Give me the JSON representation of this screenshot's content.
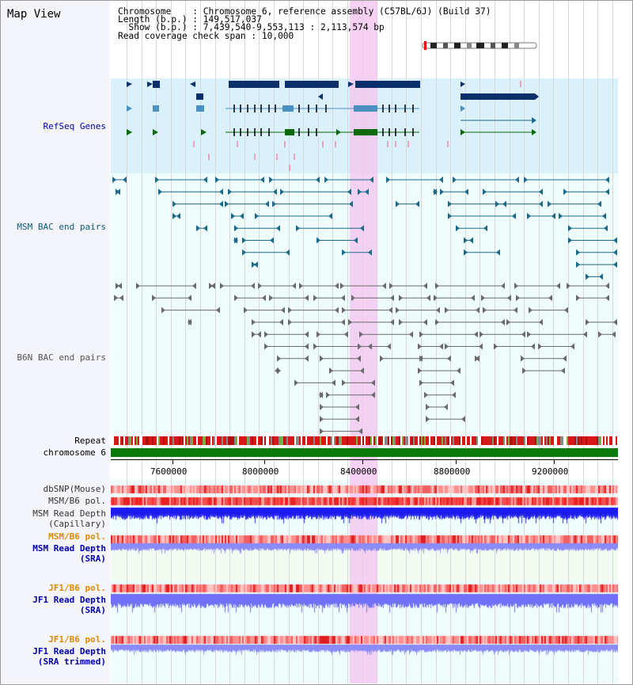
{
  "app": {
    "title": "Map View"
  },
  "info": {
    "line1": "Chromosome    : Chromosome 6, reference assembly (C57BL/6J) (Build 37)",
    "line2": "Length (b.p.) : 149,517,037",
    "line3": "  Show (b.p.) : 7,439,540-9,553,113 : 2,113,574 bp",
    "line4": "Read coverage check span : 10,000"
  },
  "tracks": {
    "refseq": "RefSeq Genes",
    "msm_bac": "MSM BAC end pairs",
    "b6n_bac": "B6N BAC end pairs",
    "repeat": "Repeat",
    "chrom": "chromosome 6",
    "dbsnp": "dbSNP(Mouse)",
    "msm_b6_pol_1": "MSM/B6 pol.",
    "msm_depth_cap_1": "MSM Read Depth",
    "msm_depth_cap_2": "(Capillary)",
    "msm_b6_pol_2": "MSM/B6 pol.",
    "msm_depth_sra_1": "MSM Read Depth",
    "msm_depth_sra_2": "(SRA)",
    "jf1_b6_pol_1": "JF1/B6 pol.",
    "jf1_depth_sra_1": "JF1 Read Depth",
    "jf1_depth_sra_2": "(SRA)",
    "jf1_b6_pol_2": "JF1/B6 pol.",
    "jf1_depth_trim_1": "JF1 Read Depth",
    "jf1_depth_trim_2": "(SRA trimmed)"
  },
  "axis": {
    "ticks": [
      "7600000",
      "8000000",
      "8400000",
      "8800000",
      "9200000"
    ]
  },
  "colors": {
    "refseq_dark": "#0a2f6b",
    "refseq_mid": "#4a90c0",
    "refseq_green": "#0a6a0a",
    "msm_bac": "#1b6a8a",
    "b6n_bac": "#666666",
    "highlight": "#f4c6f0",
    "label_blue": "#0000aa",
    "label_orange": "#e08a00",
    "label_gray": "#333333"
  }
}
